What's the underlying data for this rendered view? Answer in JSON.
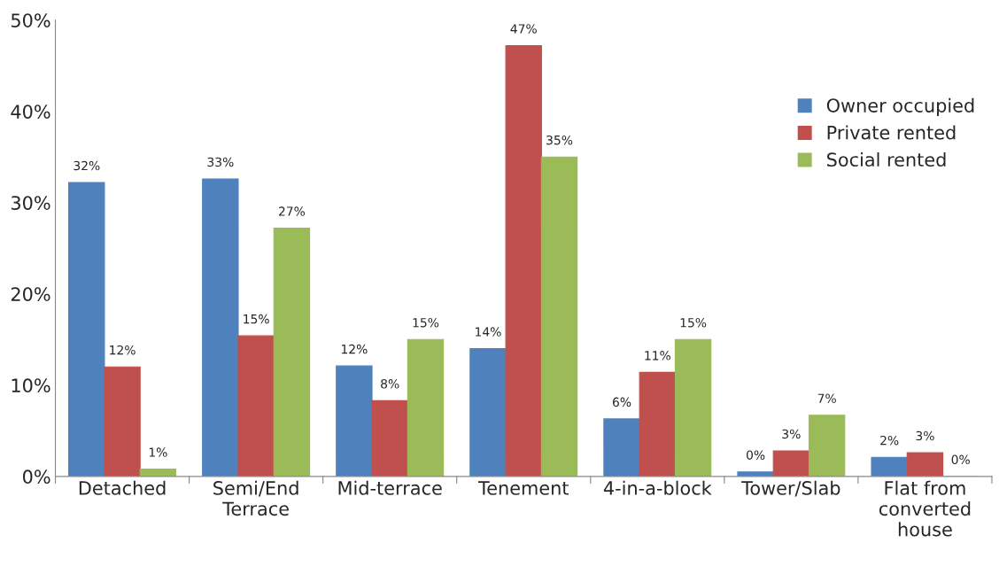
{
  "chart_data": {
    "type": "bar",
    "categories": [
      "Detached",
      "Semi/End\nTerrace",
      "Mid-terrace",
      "Tenement",
      "4-in-a-block",
      "Tower/Slab",
      "Flat from\nconverted\nhouse"
    ],
    "series": [
      {
        "name": "Owner occupied",
        "color": "#4f81bd",
        "values": [
          32.2,
          32.6,
          12.1,
          14.0,
          6.3,
          0.5,
          2.1
        ],
        "value_labels": [
          "32%",
          "33%",
          "12%",
          "14%",
          "6%",
          "0%",
          "2%"
        ]
      },
      {
        "name": "Private rented",
        "color": "#c0504d",
        "values": [
          12.0,
          15.4,
          8.3,
          47.2,
          11.4,
          2.8,
          2.6
        ],
        "value_labels": [
          "12%",
          "15%",
          "8%",
          "47%",
          "11%",
          "3%",
          "3%"
        ]
      },
      {
        "name": "Social rented",
        "color": "#9bbb59",
        "values": [
          0.8,
          27.2,
          15.0,
          35.0,
          15.0,
          6.7,
          0.0
        ],
        "value_labels": [
          "1%",
          "27%",
          "15%",
          "35%",
          "15%",
          "7%",
          "0%"
        ]
      }
    ],
    "ylim": [
      0,
      50
    ],
    "yticks": [
      {
        "value": 0,
        "label": "0%"
      },
      {
        "value": 10,
        "label": "10%"
      },
      {
        "value": 20,
        "label": "20%"
      },
      {
        "value": 30,
        "label": "30%"
      },
      {
        "value": 40,
        "label": "40%"
      },
      {
        "value": 50,
        "label": "50%"
      }
    ],
    "grid": false,
    "legend": "right"
  }
}
